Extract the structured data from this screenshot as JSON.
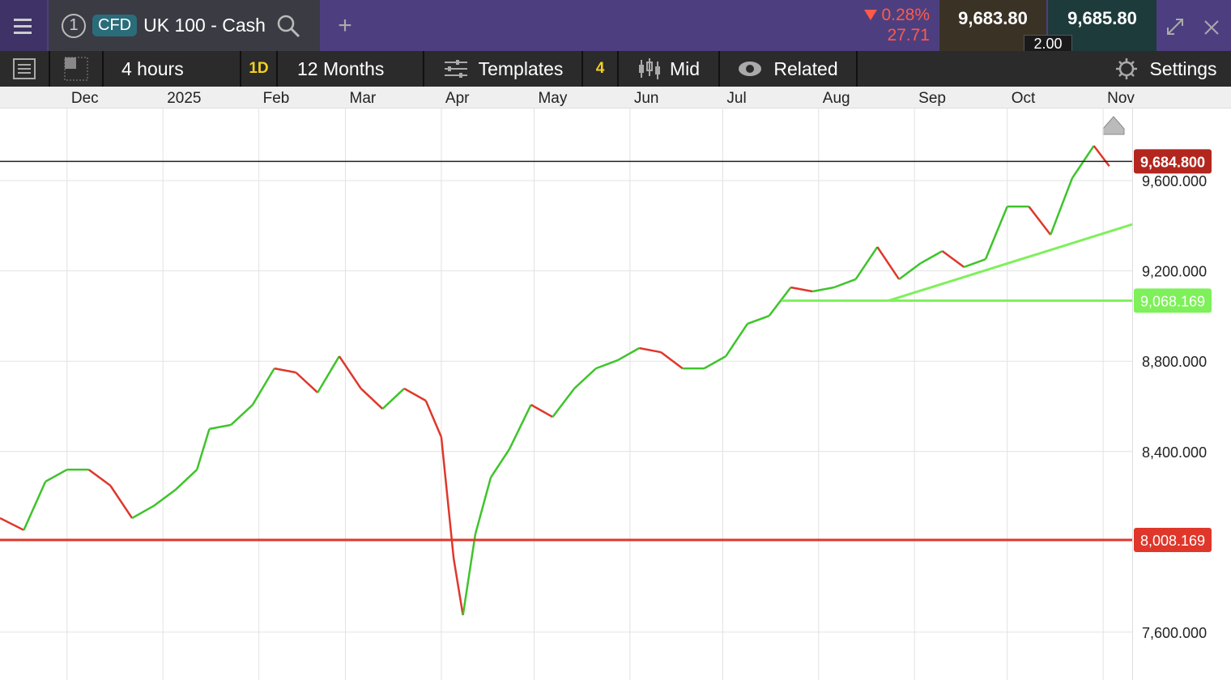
{
  "header": {
    "tab_number": "1",
    "badge": "CFD",
    "instrument": "UK 100 - Cash",
    "add": "+",
    "change_pct": "0.28%",
    "change_abs": "27.71",
    "sell": "9,683.80",
    "buy": "9,685.80",
    "spread": "2.00"
  },
  "toolbar": {
    "interval": "4 hours",
    "range_short": "1D",
    "range": "12 Months",
    "templates": "Templates",
    "template_count": "4",
    "price_type": "Mid",
    "related": "Related",
    "settings": "Settings"
  },
  "chart_data": {
    "type": "line",
    "x": [
      -21.7,
      -14,
      -7,
      0,
      7,
      14,
      21,
      28,
      35,
      42,
      46,
      53,
      60,
      67,
      74,
      81,
      88,
      95,
      102,
      109,
      116,
      121,
      125,
      128,
      132,
      137,
      143,
      150,
      157,
      164,
      171,
      178,
      185,
      192,
      199,
      206,
      213,
      220,
      227,
      234,
      241,
      248,
      255,
      262,
      269,
      276,
      283,
      290,
      297,
      304,
      311,
      318,
      325,
      332,
      337
    ],
    "series": [
      {
        "name": "UK 100 - Cash",
        "up_color": "#3ec42b",
        "down_color": "#e0372b",
        "values": [
          8105,
          8052,
          8267,
          8320,
          8320,
          8249,
          8105,
          8159,
          8230,
          8320,
          8500,
          8518,
          8607,
          8768,
          8750,
          8661,
          8822,
          8679,
          8589,
          8679,
          8625,
          8464,
          7926,
          7675,
          8034,
          8285,
          8410,
          8607,
          8553,
          8679,
          8768,
          8804,
          8858,
          8840,
          8768,
          8768,
          8822,
          8966,
          9001,
          9127,
          9109,
          9127,
          9163,
          9306,
          9163,
          9234,
          9288,
          9217,
          9252,
          9485,
          9485,
          9360,
          9611,
          9754,
          9664
        ]
      }
    ],
    "xlim": [
      -21.7,
      344.4
    ],
    "ylim": [
      7388,
      9923
    ],
    "xticks": [
      {
        "value": 0,
        "label": "Dec"
      },
      {
        "value": 31,
        "label": "2025"
      },
      {
        "value": 62,
        "label": "Feb"
      },
      {
        "value": 90,
        "label": "Mar"
      },
      {
        "value": 121,
        "label": "Apr"
      },
      {
        "value": 151,
        "label": "May"
      },
      {
        "value": 182,
        "label": "Jun"
      },
      {
        "value": 212,
        "label": "Jul"
      },
      {
        "value": 243,
        "label": "Aug"
      },
      {
        "value": 274,
        "label": "Sep"
      },
      {
        "value": 304,
        "label": "Oct"
      },
      {
        "value": 335,
        "label": "Nov"
      }
    ],
    "yticks": [
      {
        "value": 7600,
        "label": "7,600.000"
      },
      {
        "value": 8400,
        "label": "8,400.000"
      },
      {
        "value": 8800,
        "label": "8,800.000"
      },
      {
        "value": 9200,
        "label": "9,200.000"
      },
      {
        "value": 9600,
        "label": "9,600.000"
      }
    ],
    "grid": true,
    "levels": [
      {
        "value": 9684.8,
        "label": "9,684.800",
        "color": "#222222",
        "badge": "#b3261e",
        "start": -21.7
      },
      {
        "value": 9068.169,
        "label": "9,068.169",
        "color": "#7ef05a",
        "badge": "#7ef05a",
        "start": 231
      },
      {
        "value": 8008.169,
        "label": "8,008.169",
        "color": "#e0372b",
        "badge": "#e0372b",
        "start": -21.7
      }
    ],
    "trendline": {
      "x": [
        265.6,
        344.4
      ],
      "y": [
        9068.169,
        9406
      ],
      "color": "#7ef05a"
    }
  }
}
